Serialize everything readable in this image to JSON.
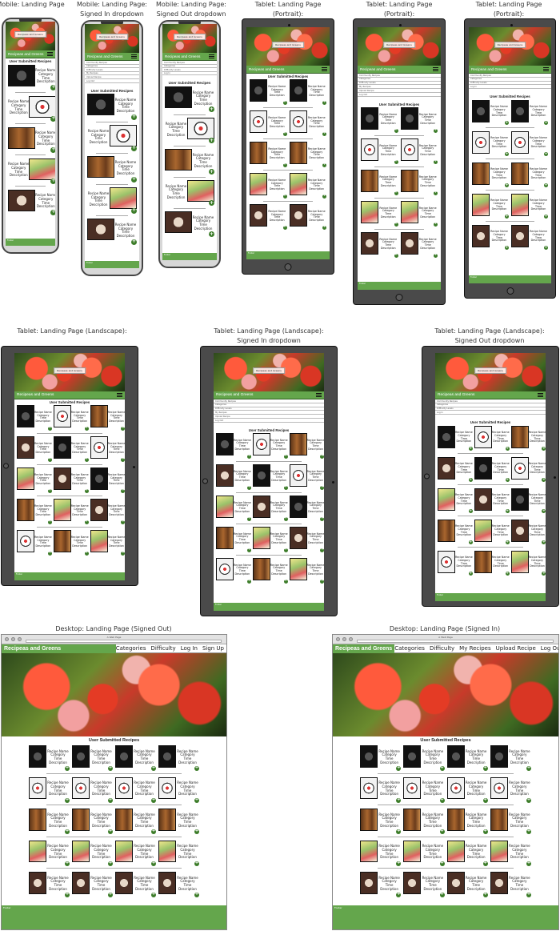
{
  "captions": {
    "mobile_landing": [
      "Mobile: Landing Page"
    ],
    "mobile_signed_in": [
      "Mobile: Landing Page:",
      "Signed In dropdown"
    ],
    "mobile_signed_out": [
      "Mobile: Landing Page:",
      "Signed Out dropdown"
    ],
    "tablet_portrait": [
      "Tablet: Landing Page (Portrait):"
    ],
    "tablet_portrait_in": [
      "Tablet: Landing Page (Portrait):",
      "Signed In dropdown"
    ],
    "tablet_portrait_out": [
      "Tablet: Landing Page (Portrait):",
      "Signed Out dropdown"
    ],
    "tablet_landscape": [
      "Tablet: Landing Page (Landscape):"
    ],
    "tablet_landscape_in": [
      "Tablet: Landing Page (Landscape):",
      "Signed In dropdown"
    ],
    "tablet_landscape_out": [
      "Tablet: Landing Page (Landscape):",
      "Signed Out dropdown"
    ],
    "desktop_out": [
      "Desktop: Landing Page (Signed Out)"
    ],
    "desktop_in": [
      "Desktop: Landing Page (Signed In)"
    ]
  },
  "site": {
    "brand": "Recipeas and Greens",
    "section_title": "User Submitted Recipes",
    "footer": "Footer",
    "hero_label": "Recipeas and Greens",
    "card": {
      "name": "Recipe Name",
      "category": "Category",
      "time": "Time",
      "description": "Description",
      "add": "+"
    }
  },
  "dropdowns": {
    "signed_in": [
      "Community Recipes",
      "Categories",
      "Difficulty Levels",
      "My Recipes",
      "Upload Recipe",
      "Log Out"
    ],
    "signed_out": [
      "Community Recipes",
      "Categories",
      "Difficulty Levels",
      "Log In"
    ]
  },
  "desktop": {
    "tab_title": "A Web Page",
    "nav_signed_out": [
      "Categories",
      "Difficulty",
      "Log In",
      "Sign Up"
    ],
    "nav_signed_in": [
      "Categories",
      "Difficulty",
      "My Recipes",
      "Upload Recipe",
      "Log Out"
    ]
  },
  "colors": {
    "brand_green": "#64a64c",
    "button_green": "#3d7d2a"
  },
  "thumbs": [
    "#1a1a1a",
    "#f4f4f4",
    "#8a4e22",
    "#e9e06a",
    "#3a2a22"
  ]
}
